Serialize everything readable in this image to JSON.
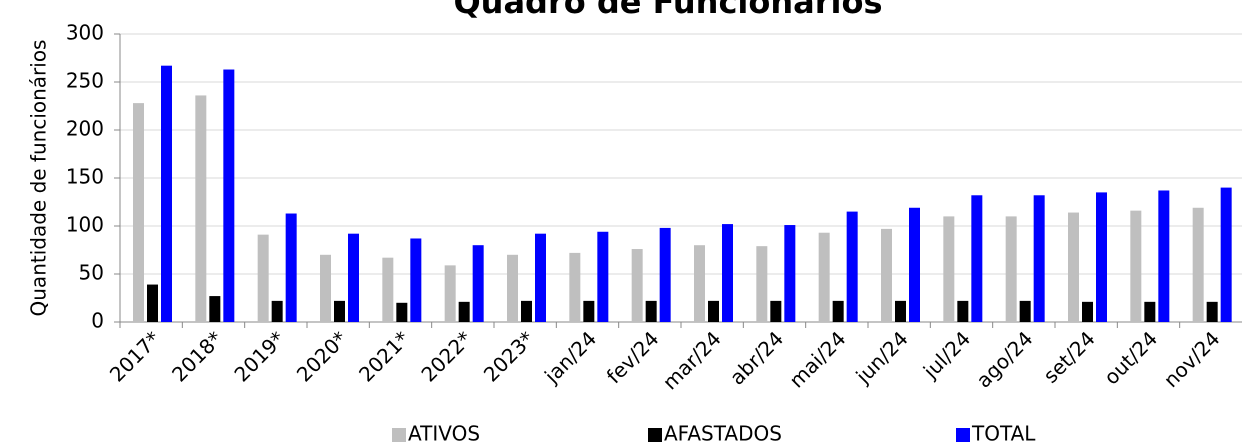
{
  "chart_data": {
    "type": "bar",
    "title": "Quadro de Funcionários",
    "y_label": "Quantidade de funcionários",
    "categories": [
      "2017*",
      "2018*",
      "2019*",
      "2020*",
      "2021*",
      "2022*",
      "2023*",
      "jan/24",
      "fev/24",
      "mar/24",
      "abr/24",
      "mai/24",
      "jun/24",
      "jul/24",
      "ago/24",
      "set/24",
      "out/24",
      "nov/24"
    ],
    "series": [
      {
        "name": "ATIVOS",
        "color": "#bfbfbf",
        "values": [
          228,
          236,
          91,
          70,
          67,
          59,
          70,
          72,
          76,
          80,
          79,
          93,
          97,
          110,
          110,
          114,
          116,
          119
        ]
      },
      {
        "name": "AFASTADOS",
        "color": "#000000",
        "values": [
          39,
          27,
          22,
          22,
          20,
          21,
          22,
          22,
          22,
          22,
          22,
          22,
          22,
          22,
          22,
          21,
          21,
          21
        ]
      },
      {
        "name": "TOTAL",
        "color": "#0000ff",
        "values": [
          267,
          263,
          113,
          92,
          87,
          80,
          92,
          94,
          98,
          102,
          101,
          115,
          119,
          132,
          132,
          135,
          137,
          140
        ]
      }
    ],
    "ylim": [
      0,
      300
    ],
    "yticks": [
      0,
      50,
      100,
      150,
      200,
      250,
      300
    ],
    "grid": true,
    "legend": "bottom"
  }
}
